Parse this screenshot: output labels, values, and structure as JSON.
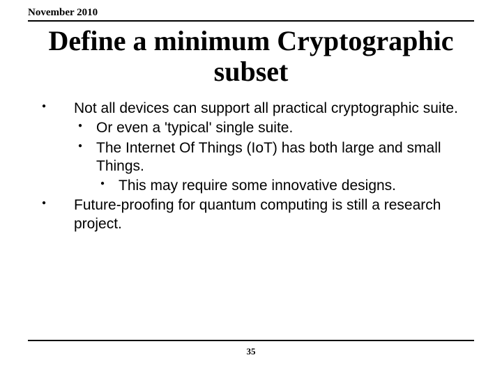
{
  "header": {
    "date": "November 2010"
  },
  "title": {
    "line1": "Define a minimum Cryptographic",
    "line2": "subset"
  },
  "bullets": [
    {
      "text": "Not all devices can support all practical cryptographic suite.",
      "children": [
        {
          "text": "Or even a 'typical' single suite."
        },
        {
          "text": "The Internet Of Things (IoT) has both large and small Things.",
          "children": [
            {
              "text": "This may require some innovative designs."
            }
          ]
        }
      ]
    },
    {
      "text": "Future-proofing for quantum computing is still a research project."
    }
  ],
  "footer": {
    "page_number": "35"
  }
}
